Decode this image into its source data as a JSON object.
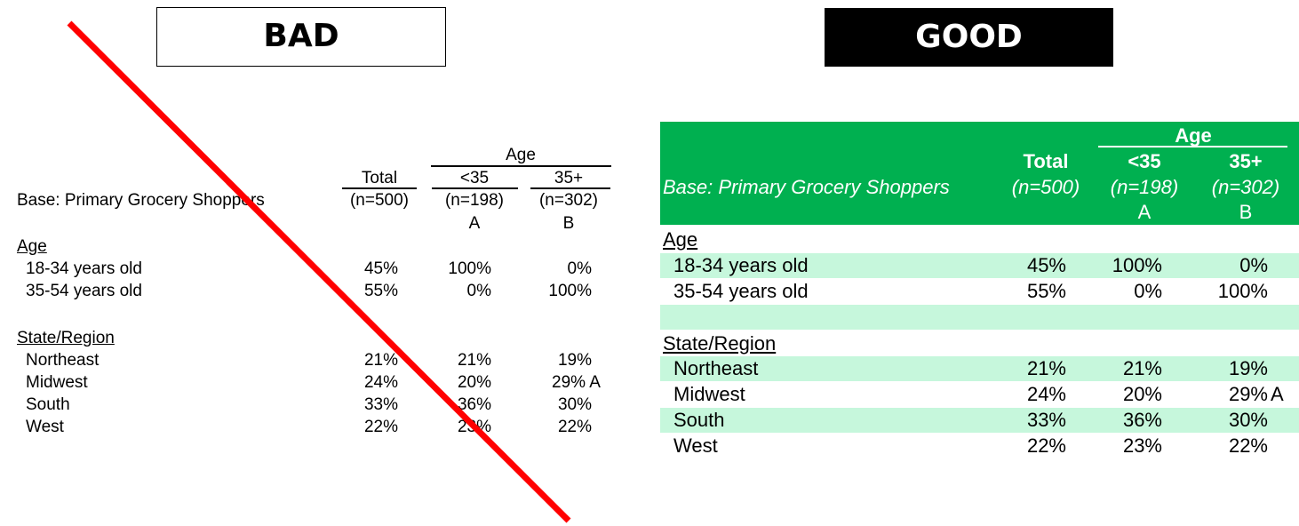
{
  "bad": {
    "banner": "BAD",
    "age_group": "Age",
    "base_label": "Base: Primary Grocery Shoppers",
    "columns": [
      {
        "label": "Total",
        "n": "(n=500)",
        "letter": ""
      },
      {
        "label": "<35",
        "n": "(n=198)",
        "letter": "A"
      },
      {
        "label": "35+",
        "n": "(n=302)",
        "letter": "B"
      }
    ],
    "sections": [
      {
        "title": "Age",
        "rows": [
          {
            "label": "18-34 years old",
            "values": [
              "45%",
              "100%",
              "0%"
            ]
          },
          {
            "label": "35-54 years old",
            "values": [
              "55%",
              "0%",
              "100%"
            ]
          }
        ]
      },
      {
        "title": "State/Region",
        "rows": [
          {
            "label": "Northeast",
            "values": [
              "21%",
              "21%",
              "19%"
            ]
          },
          {
            "label": "Midwest",
            "values": [
              "24%",
              "20%",
              "29% A"
            ]
          },
          {
            "label": "South",
            "values": [
              "33%",
              "36%",
              "30%"
            ]
          },
          {
            "label": "West",
            "values": [
              "22%",
              "23%",
              "22%"
            ]
          }
        ]
      }
    ],
    "cross_color": "#ff0000"
  },
  "good": {
    "banner": "GOOD",
    "age_group": "Age",
    "base_label": "Base: Primary Grocery Shoppers",
    "columns": [
      {
        "label": "Total",
        "n": "(n=500)",
        "letter": ""
      },
      {
        "label": "<35",
        "n": "(n=198)",
        "letter": "A"
      },
      {
        "label": "35+",
        "n": "(n=302)",
        "letter": "B"
      }
    ],
    "sections": [
      {
        "title": "Age",
        "rows": [
          {
            "label": "18-34 years old",
            "values": [
              "45%",
              "100%",
              "0%"
            ]
          },
          {
            "label": "35-54 years old",
            "values": [
              "55%",
              "0%",
              "100%"
            ]
          }
        ]
      },
      {
        "title": "State/Region",
        "rows": [
          {
            "label": "Northeast",
            "values": [
              "21%",
              "21%",
              "19%"
            ]
          },
          {
            "label": "Midwest",
            "values": [
              "24%",
              "20%",
              "29%",
              "A"
            ]
          },
          {
            "label": "South",
            "values": [
              "33%",
              "36%",
              "30%"
            ]
          },
          {
            "label": "West",
            "values": [
              "22%",
              "23%",
              "22%"
            ]
          }
        ]
      }
    ],
    "header_color": "#00b050",
    "band_color": "#c6f7dc"
  }
}
